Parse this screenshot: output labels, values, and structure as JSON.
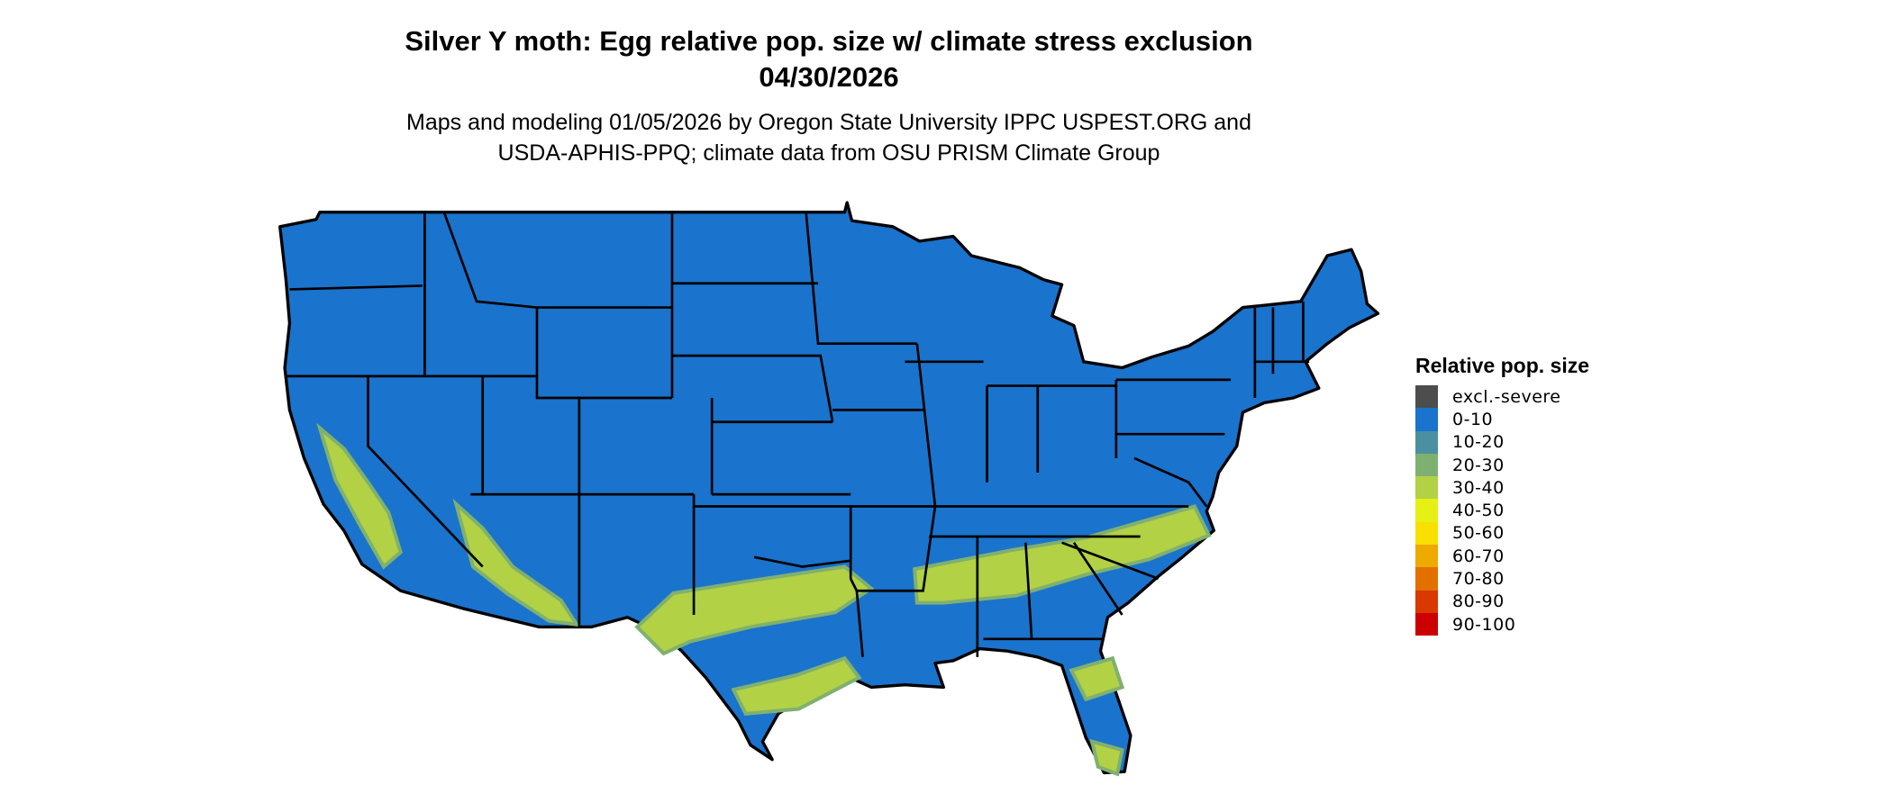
{
  "title": {
    "line1": "Silver Y moth: Egg relative pop. size w/ climate stress exclusion",
    "line2": "04/30/2026"
  },
  "subtitle": {
    "line1": "Maps and modeling 01/05/2026 by Oregon State University IPPC USPEST.ORG and",
    "line2": "USDA-APHIS-PPQ; climate data from OSU PRISM Climate Group"
  },
  "legend": {
    "title": "Relative pop. size",
    "items": [
      {
        "label": "excl.-severe",
        "color": "#4d4d4d"
      },
      {
        "label": "0-10",
        "color": "#1a73cc"
      },
      {
        "label": "10-20",
        "color": "#4a90a0"
      },
      {
        "label": "20-30",
        "color": "#7fb06f"
      },
      {
        "label": "30-40",
        "color": "#b2d145"
      },
      {
        "label": "40-50",
        "color": "#e6f014"
      },
      {
        "label": "50-60",
        "color": "#f8e000"
      },
      {
        "label": "60-70",
        "color": "#eeaa00"
      },
      {
        "label": "70-80",
        "color": "#e27000"
      },
      {
        "label": "80-90",
        "color": "#d93800"
      },
      {
        "label": "90-100",
        "color": "#cc0000"
      }
    ]
  },
  "map": {
    "region": "Contiguous United States",
    "dominant_class": "0-10",
    "elevated_class": "30-40",
    "elevated_areas": [
      "California Central Valley",
      "Southern Arizona",
      "Texas",
      "Gulf Coast",
      "Southeast",
      "Florida"
    ]
  }
}
